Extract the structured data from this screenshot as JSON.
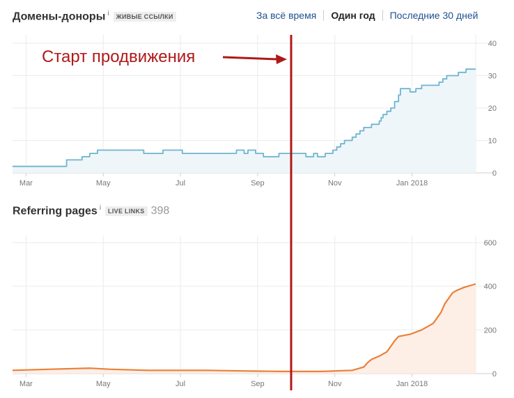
{
  "header": {
    "referring_domains_title": "Домены-доноры",
    "referring_domains_info": "i",
    "referring_domains_tag": "ЖИВЫЕ ССЫЛКИ",
    "range_tabs": [
      {
        "label": "За всё время",
        "active": false
      },
      {
        "label": "Один год",
        "active": true
      },
      {
        "label": "Последние 30 дней",
        "active": false
      }
    ]
  },
  "pages_section": {
    "title": "Referring pages",
    "info": "i",
    "tag": "LIVE LINKS",
    "count": "398"
  },
  "annotation": {
    "text": "Старт продвижения",
    "color": "#b01818"
  },
  "chart_data": [
    {
      "type": "area",
      "color": "#6fb4cf",
      "fill": "#eef6fa",
      "x_range": [
        0,
        12
      ],
      "ylim": [
        0,
        40
      ],
      "y_ticks": [
        0,
        10,
        20,
        30,
        40
      ],
      "x_ticks": [
        {
          "pos": 0.35,
          "label": "Mar"
        },
        {
          "pos": 2.35,
          "label": "May"
        },
        {
          "pos": 4.35,
          "label": "Jul"
        },
        {
          "pos": 6.35,
          "label": "Sep"
        },
        {
          "pos": 8.35,
          "label": "Nov"
        },
        {
          "pos": 10.35,
          "label": "Jan 2018"
        }
      ],
      "grid": true,
      "x": [
        0,
        1.3,
        1.4,
        1.8,
        2.0,
        2.2,
        2.3,
        3.4,
        3.9,
        4.4,
        5.0,
        5.8,
        6.0,
        6.1,
        6.3,
        6.5,
        6.9,
        7.0,
        7.1,
        7.5,
        7.6,
        7.8,
        7.9,
        8.1,
        8.3,
        8.4,
        8.5,
        8.6,
        8.8,
        8.9,
        9.0,
        9.1,
        9.3,
        9.5,
        9.55,
        9.6,
        9.7,
        9.8,
        9.9,
        10.0,
        10.05,
        10.15,
        10.3,
        10.45,
        10.6,
        10.75,
        10.9,
        11.05,
        11.15,
        11.25,
        11.4,
        11.55,
        11.75,
        12.0
      ],
      "y": [
        2,
        2,
        4,
        5,
        6,
        7,
        7,
        6,
        7,
        6,
        6,
        7,
        6,
        7,
        6,
        5,
        6,
        6,
        6,
        6,
        5,
        6,
        5,
        6,
        7,
        8,
        9,
        10,
        11,
        12,
        13,
        14,
        15,
        16,
        17,
        18,
        19,
        20,
        22,
        24,
        26,
        26,
        25,
        26,
        27,
        27,
        27,
        28,
        29,
        30,
        30,
        31,
        32,
        32
      ]
    },
    {
      "type": "area",
      "color": "#e8813a",
      "fill": "#fdeee6",
      "x_range": [
        0,
        12
      ],
      "ylim": [
        0,
        600
      ],
      "y_ticks": [
        0,
        200,
        400,
        600
      ],
      "x_ticks": [
        {
          "pos": 0.35,
          "label": "Mar"
        },
        {
          "pos": 2.35,
          "label": "May"
        },
        {
          "pos": 4.35,
          "label": "Jul"
        },
        {
          "pos": 6.35,
          "label": "Sep"
        },
        {
          "pos": 8.35,
          "label": "Nov"
        },
        {
          "pos": 10.35,
          "label": "Jan 2018"
        }
      ],
      "grid": true,
      "x": [
        0,
        1.0,
        2.0,
        2.5,
        3.5,
        5.0,
        6.0,
        7.0,
        8.0,
        8.8,
        9.1,
        9.2,
        9.3,
        9.5,
        9.7,
        9.9,
        10.0,
        10.3,
        10.6,
        10.9,
        11.1,
        11.2,
        11.4,
        11.5,
        11.7,
        12.0
      ],
      "y": [
        15,
        20,
        25,
        20,
        15,
        15,
        12,
        10,
        10,
        15,
        30,
        50,
        65,
        80,
        100,
        150,
        170,
        180,
        200,
        230,
        280,
        320,
        370,
        380,
        395,
        410
      ]
    }
  ]
}
